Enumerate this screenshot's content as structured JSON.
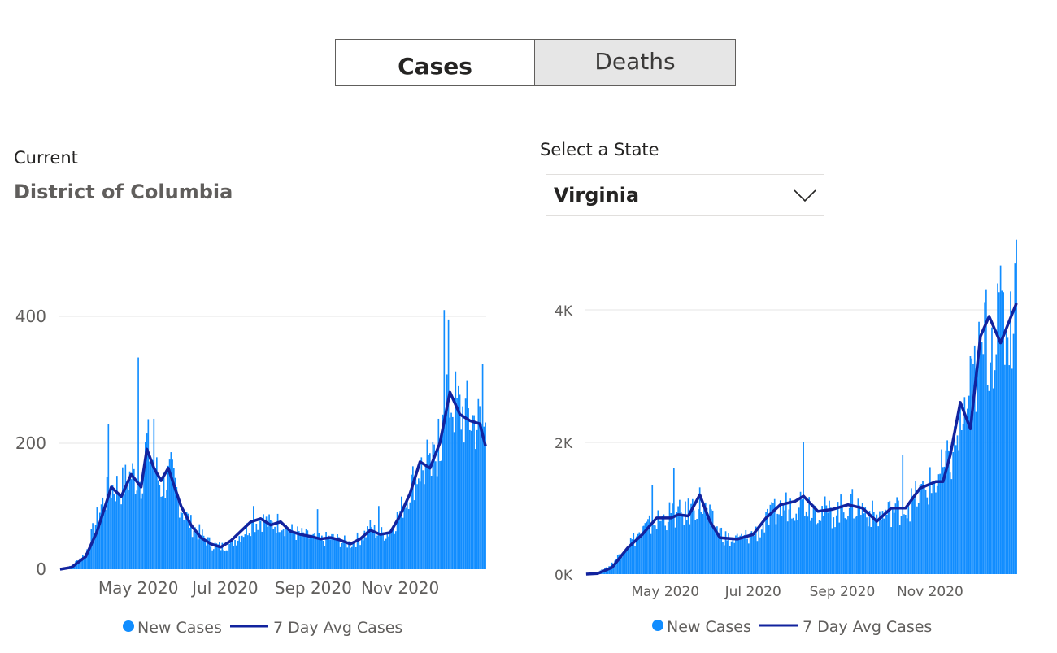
{
  "toggle": {
    "cases_label": "Cases",
    "deaths_label": "Deaths",
    "active": "Cases"
  },
  "current": {
    "label": "Current",
    "value": "District of Columbia"
  },
  "selector": {
    "label": "Select a State",
    "value": "Virginia"
  },
  "colors": {
    "bar": "#118dff",
    "line": "#12239e",
    "grid": "#e6e6e6",
    "text": "#605e5c"
  },
  "chart_data": [
    {
      "type": "bar",
      "name": "District of Columbia",
      "title": "",
      "x_start": "2020-03-07",
      "x_end": "2020-12-31",
      "x_ticks": [
        "May 2020",
        "Jul 2020",
        "Sep 2020",
        "Nov 2020"
      ],
      "y_ticks": [
        "0",
        "200",
        "400"
      ],
      "ylim": [
        0,
        400
      ],
      "legend": {
        "position": "bottom-center",
        "entries": [
          "New Cases",
          "7 Day Avg Cases"
        ]
      },
      "series": [
        {
          "name": "New Cases",
          "type": "bar",
          "anchors": [
            [
              "2020-03-07",
              0
            ],
            [
              "2020-03-15",
              5
            ],
            [
              "2020-03-25",
              25
            ],
            [
              "2020-04-05",
              100
            ],
            [
              "2020-04-12",
              130
            ],
            [
              "2020-04-19",
              130
            ],
            [
              "2020-04-26",
              150
            ],
            [
              "2020-05-03",
              140
            ],
            [
              "2020-05-07",
              200
            ],
            [
              "2020-05-10",
              180
            ],
            [
              "2020-05-17",
              130
            ],
            [
              "2020-05-24",
              150
            ],
            [
              "2020-05-31",
              100
            ],
            [
              "2020-06-07",
              70
            ],
            [
              "2020-06-14",
              55
            ],
            [
              "2020-06-21",
              40
            ],
            [
              "2020-06-28",
              35
            ],
            [
              "2020-07-05",
              40
            ],
            [
              "2020-07-12",
              55
            ],
            [
              "2020-07-19",
              70
            ],
            [
              "2020-07-26",
              80
            ],
            [
              "2020-08-02",
              70
            ],
            [
              "2020-08-09",
              75
            ],
            [
              "2020-08-16",
              60
            ],
            [
              "2020-08-23",
              55
            ],
            [
              "2020-08-30",
              50
            ],
            [
              "2020-09-06",
              45
            ],
            [
              "2020-09-13",
              50
            ],
            [
              "2020-09-20",
              45
            ],
            [
              "2020-09-27",
              40
            ],
            [
              "2020-10-04",
              50
            ],
            [
              "2020-10-11",
              65
            ],
            [
              "2020-10-18",
              55
            ],
            [
              "2020-10-25",
              60
            ],
            [
              "2020-11-01",
              90
            ],
            [
              "2020-11-08",
              130
            ],
            [
              "2020-11-15",
              160
            ],
            [
              "2020-11-22",
              150
            ],
            [
              "2020-11-29",
              200
            ],
            [
              "2020-12-06",
              270
            ],
            [
              "2020-12-13",
              250
            ],
            [
              "2020-12-20",
              240
            ],
            [
              "2020-12-27",
              230
            ],
            [
              "2020-12-31",
              220
            ]
          ],
          "spikes": [
            [
              "2020-04-10",
              230
            ],
            [
              "2020-05-01",
              335
            ],
            [
              "2020-05-12",
              238
            ],
            [
              "2020-07-21",
              100
            ],
            [
              "2020-09-04",
              95
            ],
            [
              "2020-10-17",
              100
            ],
            [
              "2020-11-20",
              205
            ],
            [
              "2020-11-28",
              238
            ],
            [
              "2020-12-02",
              410
            ],
            [
              "2020-12-05",
              395
            ],
            [
              "2020-12-29",
              325
            ]
          ]
        },
        {
          "name": "7 Day Avg Cases",
          "type": "line",
          "points": [
            [
              "2020-03-07",
              0
            ],
            [
              "2020-03-15",
              3
            ],
            [
              "2020-03-25",
              20
            ],
            [
              "2020-04-02",
              60
            ],
            [
              "2020-04-12",
              130
            ],
            [
              "2020-04-19",
              115
            ],
            [
              "2020-04-26",
              150
            ],
            [
              "2020-05-03",
              130
            ],
            [
              "2020-05-07",
              190
            ],
            [
              "2020-05-12",
              160
            ],
            [
              "2020-05-17",
              140
            ],
            [
              "2020-05-22",
              160
            ],
            [
              "2020-05-31",
              100
            ],
            [
              "2020-06-07",
              70
            ],
            [
              "2020-06-14",
              50
            ],
            [
              "2020-06-21",
              40
            ],
            [
              "2020-06-28",
              35
            ],
            [
              "2020-07-05",
              45
            ],
            [
              "2020-07-12",
              60
            ],
            [
              "2020-07-19",
              75
            ],
            [
              "2020-07-26",
              80
            ],
            [
              "2020-08-02",
              70
            ],
            [
              "2020-08-09",
              75
            ],
            [
              "2020-08-16",
              60
            ],
            [
              "2020-08-23",
              55
            ],
            [
              "2020-08-30",
              52
            ],
            [
              "2020-09-06",
              48
            ],
            [
              "2020-09-13",
              50
            ],
            [
              "2020-09-20",
              46
            ],
            [
              "2020-09-27",
              40
            ],
            [
              "2020-10-04",
              48
            ],
            [
              "2020-10-11",
              62
            ],
            [
              "2020-10-18",
              55
            ],
            [
              "2020-10-25",
              58
            ],
            [
              "2020-11-01",
              85
            ],
            [
              "2020-11-08",
              120
            ],
            [
              "2020-11-15",
              170
            ],
            [
              "2020-11-22",
              160
            ],
            [
              "2020-11-29",
              200
            ],
            [
              "2020-12-06",
              280
            ],
            [
              "2020-12-13",
              245
            ],
            [
              "2020-12-20",
              235
            ],
            [
              "2020-12-27",
              230
            ],
            [
              "2020-12-31",
              195
            ]
          ]
        }
      ]
    },
    {
      "type": "bar",
      "name": "Virginia",
      "title": "",
      "x_start": "2020-03-07",
      "x_end": "2020-12-31",
      "x_ticks": [
        "May 2020",
        "Jul 2020",
        "Sep 2020",
        "Nov 2020"
      ],
      "y_ticks": [
        "0K",
        "2K",
        "4K"
      ],
      "ylim": [
        0,
        4000
      ],
      "legend": {
        "position": "bottom-center",
        "entries": [
          "New Cases",
          "7 Day Avg Cases"
        ]
      },
      "series": [
        {
          "name": "New Cases",
          "type": "bar",
          "anchors": [
            [
              "2020-03-07",
              0
            ],
            [
              "2020-03-15",
              20
            ],
            [
              "2020-03-25",
              150
            ],
            [
              "2020-04-05",
              450
            ],
            [
              "2020-04-15",
              650
            ],
            [
              "2020-04-25",
              800
            ],
            [
              "2020-05-05",
              900
            ],
            [
              "2020-05-15",
              900
            ],
            [
              "2020-05-25",
              1100
            ],
            [
              "2020-06-05",
              700
            ],
            [
              "2020-06-15",
              500
            ],
            [
              "2020-06-25",
              550
            ],
            [
              "2020-07-05",
              650
            ],
            [
              "2020-07-15",
              900
            ],
            [
              "2020-07-25",
              1050
            ],
            [
              "2020-08-05",
              1100
            ],
            [
              "2020-08-15",
              1000
            ],
            [
              "2020-08-25",
              900
            ],
            [
              "2020-09-05",
              1050
            ],
            [
              "2020-09-15",
              1000
            ],
            [
              "2020-09-25",
              850
            ],
            [
              "2020-10-05",
              950
            ],
            [
              "2020-10-15",
              1000
            ],
            [
              "2020-10-25",
              1200
            ],
            [
              "2020-11-05",
              1400
            ],
            [
              "2020-11-15",
              1700
            ],
            [
              "2020-11-25",
              2400
            ],
            [
              "2020-12-05",
              3200
            ],
            [
              "2020-12-15",
              3700
            ],
            [
              "2020-12-25",
              3800
            ],
            [
              "2020-12-31",
              4200
            ]
          ],
          "spikes": [
            [
              "2020-05-07",
              1600
            ],
            [
              "2020-04-22",
              1350
            ],
            [
              "2020-08-05",
              2000
            ],
            [
              "2020-10-13",
              1800
            ],
            [
              "2020-11-20",
              2100
            ],
            [
              "2020-11-28",
              2700
            ],
            [
              "2020-12-10",
              4300
            ],
            [
              "2020-12-18",
              4400
            ],
            [
              "2020-12-30",
              4700
            ]
          ]
        },
        {
          "name": "7 Day Avg Cases",
          "type": "line",
          "points": [
            [
              "2020-03-07",
              0
            ],
            [
              "2020-03-15",
              10
            ],
            [
              "2020-03-25",
              100
            ],
            [
              "2020-04-05",
              400
            ],
            [
              "2020-04-15",
              600
            ],
            [
              "2020-04-25",
              850
            ],
            [
              "2020-05-05",
              850
            ],
            [
              "2020-05-10",
              900
            ],
            [
              "2020-05-17",
              880
            ],
            [
              "2020-05-25",
              1200
            ],
            [
              "2020-06-01",
              800
            ],
            [
              "2020-06-08",
              550
            ],
            [
              "2020-06-20",
              530
            ],
            [
              "2020-07-01",
              600
            ],
            [
              "2020-07-10",
              850
            ],
            [
              "2020-07-20",
              1050
            ],
            [
              "2020-07-30",
              1100
            ],
            [
              "2020-08-05",
              1180
            ],
            [
              "2020-08-15",
              950
            ],
            [
              "2020-08-25",
              980
            ],
            [
              "2020-09-05",
              1050
            ],
            [
              "2020-09-15",
              1000
            ],
            [
              "2020-09-25",
              800
            ],
            [
              "2020-10-05",
              1000
            ],
            [
              "2020-10-15",
              1000
            ],
            [
              "2020-10-25",
              1300
            ],
            [
              "2020-11-05",
              1400
            ],
            [
              "2020-11-10",
              1400
            ],
            [
              "2020-11-15",
              1800
            ],
            [
              "2020-11-22",
              2600
            ],
            [
              "2020-11-29",
              2200
            ],
            [
              "2020-12-06",
              3600
            ],
            [
              "2020-12-12",
              3900
            ],
            [
              "2020-12-20",
              3500
            ],
            [
              "2020-12-31",
              4100
            ]
          ]
        }
      ]
    }
  ]
}
